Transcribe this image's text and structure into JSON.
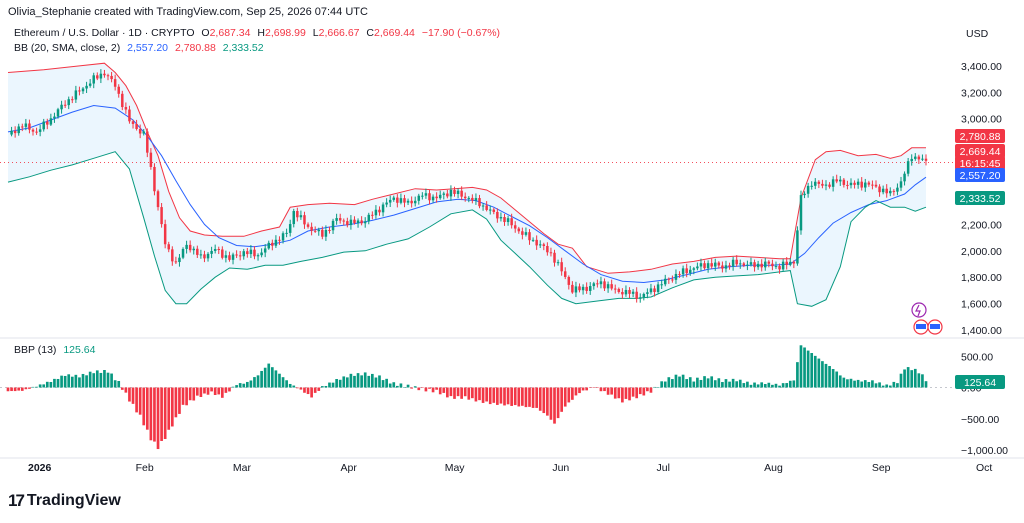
{
  "header": {
    "attribution": "Olivia_Stephanie created with TradingView.com, Sep 25, 2026 07:44 UTC"
  },
  "legend": {
    "symbol": "Ethereum / U.S. Dollar · 1D · CRYPTO",
    "open_label": "O",
    "open": "2,687.34",
    "high_label": "H",
    "high": "2,698.99",
    "low_label": "L",
    "low": "2,666.67",
    "close_label": "C",
    "close": "2,669.44",
    "change": "−17.90 (−0.67%)",
    "bb_label": "BB (20, SMA, close, 2)",
    "bb_basis": "2,557.20",
    "bb_upper": "2,780.88",
    "bb_lower": "2,333.52",
    "bbp_label": "BBP (13)",
    "bbp_value": "125.64"
  },
  "currency": "USD",
  "colors": {
    "up": "#089981",
    "down": "#f23645",
    "upper_band": "#f23645",
    "basis": "#2962ff",
    "lower_band": "#089981",
    "band_fill": "#e3f2fd"
  },
  "badges": {
    "upper": "2,780.88",
    "price": "2,669.44",
    "countdown": "16:15:45",
    "basis": "2,557.20",
    "lower": "2,333.52",
    "bbp": "125.64"
  },
  "brand": {
    "name": "TradingView"
  },
  "chart_data": [
    {
      "type": "candlestick",
      "title": "Ethereum / U.S. Dollar · 1D · CRYPTO",
      "x_ticks": [
        "2026",
        "Feb",
        "Mar",
        "Apr",
        "May",
        "Jun",
        "Jul",
        "Aug",
        "Sep",
        "Oct"
      ],
      "y_ticks": [
        "3,400.00",
        "3,200.00",
        "3,000.00",
        "2,400.00",
        "2,200.00",
        "2,000.00",
        "1,800.00",
        "1,600.00",
        "1,400.00"
      ],
      "ylim": [
        1340,
        3520
      ],
      "close_path": [
        [
          0,
          2880
        ],
        [
          4,
          2950
        ],
        [
          8,
          2900
        ],
        [
          12,
          3000
        ],
        [
          16,
          3120
        ],
        [
          20,
          3210
        ],
        [
          24,
          3300
        ],
        [
          27,
          3350
        ],
        [
          30,
          3250
        ],
        [
          34,
          2980
        ],
        [
          38,
          2880
        ],
        [
          40,
          2620
        ],
        [
          42,
          2330
        ],
        [
          44,
          2050
        ],
        [
          47,
          1900
        ],
        [
          50,
          2050
        ],
        [
          54,
          1950
        ],
        [
          58,
          2010
        ],
        [
          62,
          1940
        ],
        [
          66,
          1990
        ],
        [
          70,
          1970
        ],
        [
          74,
          2060
        ],
        [
          78,
          2130
        ],
        [
          80,
          2300
        ],
        [
          84,
          2180
        ],
        [
          88,
          2120
        ],
        [
          92,
          2240
        ],
        [
          96,
          2210
        ],
        [
          100,
          2230
        ],
        [
          104,
          2320
        ],
        [
          108,
          2400
        ],
        [
          112,
          2360
        ],
        [
          116,
          2420
        ],
        [
          120,
          2400
        ],
        [
          124,
          2450
        ],
        [
          128,
          2410
        ],
        [
          132,
          2360
        ],
        [
          136,
          2280
        ],
        [
          140,
          2220
        ],
        [
          144,
          2130
        ],
        [
          148,
          2060
        ],
        [
          152,
          1980
        ],
        [
          156,
          1800
        ],
        [
          158,
          1700
        ],
        [
          162,
          1720
        ],
        [
          166,
          1760
        ],
        [
          170,
          1700
        ],
        [
          174,
          1680
        ],
        [
          177,
          1650
        ],
        [
          180,
          1700
        ],
        [
          184,
          1770
        ],
        [
          188,
          1830
        ],
        [
          192,
          1870
        ],
        [
          196,
          1900
        ],
        [
          200,
          1880
        ],
        [
          204,
          1910
        ],
        [
          208,
          1890
        ],
        [
          212,
          1900
        ],
        [
          216,
          1880
        ],
        [
          220,
          1920
        ],
        [
          222,
          2400
        ],
        [
          225,
          2520
        ],
        [
          228,
          2490
        ],
        [
          232,
          2530
        ],
        [
          236,
          2500
        ],
        [
          240,
          2510
        ],
        [
          244,
          2470
        ],
        [
          247,
          2430
        ],
        [
          250,
          2520
        ],
        [
          253,
          2720
        ],
        [
          255,
          2700
        ],
        [
          257,
          2669
        ]
      ],
      "bollinger_upper": [
        [
          0,
          3350
        ],
        [
          10,
          3370
        ],
        [
          20,
          3400
        ],
        [
          27,
          3420
        ],
        [
          30,
          3350
        ],
        [
          33,
          3250
        ],
        [
          36,
          3100
        ],
        [
          39,
          2900
        ],
        [
          42,
          2720
        ],
        [
          45,
          2450
        ],
        [
          48,
          2250
        ],
        [
          51,
          2150
        ],
        [
          55,
          2120
        ],
        [
          60,
          2110
        ],
        [
          66,
          2110
        ],
        [
          71,
          2150
        ],
        [
          76,
          2180
        ],
        [
          79,
          2330
        ],
        [
          84,
          2350
        ],
        [
          90,
          2360
        ],
        [
          97,
          2350
        ],
        [
          102,
          2390
        ],
        [
          108,
          2430
        ],
        [
          114,
          2470
        ],
        [
          120,
          2460
        ],
        [
          125,
          2470
        ],
        [
          130,
          2480
        ],
        [
          134,
          2460
        ],
        [
          138,
          2400
        ],
        [
          142,
          2310
        ],
        [
          146,
          2220
        ],
        [
          150,
          2130
        ],
        [
          154,
          2050
        ],
        [
          158,
          2020
        ],
        [
          162,
          1880
        ],
        [
          168,
          1830
        ],
        [
          174,
          1840
        ],
        [
          180,
          1860
        ],
        [
          186,
          1900
        ],
        [
          192,
          1920
        ],
        [
          198,
          1950
        ],
        [
          204,
          1960
        ],
        [
          210,
          1950
        ],
        [
          216,
          1940
        ],
        [
          219,
          1940
        ],
        [
          222,
          2400
        ],
        [
          226,
          2690
        ],
        [
          229,
          2750
        ],
        [
          233,
          2760
        ],
        [
          238,
          2720
        ],
        [
          243,
          2730
        ],
        [
          247,
          2700
        ],
        [
          250,
          2720
        ],
        [
          253,
          2780
        ],
        [
          257,
          2780
        ]
      ],
      "bollinger_basis": [
        [
          0,
          2900
        ],
        [
          6,
          2930
        ],
        [
          12,
          2990
        ],
        [
          18,
          3050
        ],
        [
          24,
          3100
        ],
        [
          30,
          3080
        ],
        [
          35,
          2990
        ],
        [
          39,
          2870
        ],
        [
          43,
          2720
        ],
        [
          47,
          2530
        ],
        [
          51,
          2350
        ],
        [
          55,
          2200
        ],
        [
          59,
          2100
        ],
        [
          64,
          2040
        ],
        [
          69,
          2030
        ],
        [
          74,
          2050
        ],
        [
          79,
          2080
        ],
        [
          84,
          2150
        ],
        [
          90,
          2180
        ],
        [
          96,
          2200
        ],
        [
          102,
          2230
        ],
        [
          108,
          2270
        ],
        [
          114,
          2320
        ],
        [
          120,
          2370
        ],
        [
          126,
          2390
        ],
        [
          131,
          2380
        ],
        [
          136,
          2330
        ],
        [
          141,
          2260
        ],
        [
          146,
          2190
        ],
        [
          151,
          2100
        ],
        [
          156,
          2000
        ],
        [
          161,
          1900
        ],
        [
          166,
          1820
        ],
        [
          172,
          1770
        ],
        [
          178,
          1760
        ],
        [
          184,
          1780
        ],
        [
          190,
          1820
        ],
        [
          196,
          1860
        ],
        [
          202,
          1880
        ],
        [
          208,
          1890
        ],
        [
          214,
          1890
        ],
        [
          219,
          1900
        ],
        [
          223,
          1980
        ],
        [
          227,
          2100
        ],
        [
          231,
          2210
        ],
        [
          236,
          2290
        ],
        [
          241,
          2350
        ],
        [
          246,
          2380
        ],
        [
          251,
          2430
        ],
        [
          254,
          2500
        ],
        [
          257,
          2557
        ]
      ],
      "bollinger_lower": [
        [
          0,
          2520
        ],
        [
          6,
          2560
        ],
        [
          12,
          2610
        ],
        [
          18,
          2650
        ],
        [
          24,
          2700
        ],
        [
          30,
          2750
        ],
        [
          34,
          2620
        ],
        [
          38,
          2250
        ],
        [
          41,
          1960
        ],
        [
          44,
          1700
        ],
        [
          47,
          1600
        ],
        [
          50,
          1600
        ],
        [
          54,
          1710
        ],
        [
          58,
          1800
        ],
        [
          62,
          1870
        ],
        [
          67,
          1860
        ],
        [
          72,
          1890
        ],
        [
          77,
          1890
        ],
        [
          82,
          1920
        ],
        [
          88,
          1950
        ],
        [
          94,
          1990
        ],
        [
          100,
          2000
        ],
        [
          106,
          2050
        ],
        [
          112,
          2090
        ],
        [
          118,
          2180
        ],
        [
          124,
          2280
        ],
        [
          130,
          2310
        ],
        [
          134,
          2240
        ],
        [
          138,
          2080
        ],
        [
          142,
          1980
        ],
        [
          146,
          1880
        ],
        [
          151,
          1740
        ],
        [
          155,
          1640
        ],
        [
          159,
          1600
        ],
        [
          165,
          1620
        ],
        [
          171,
          1640
        ],
        [
          176,
          1640
        ],
        [
          180,
          1650
        ],
        [
          186,
          1720
        ],
        [
          192,
          1780
        ],
        [
          198,
          1800
        ],
        [
          204,
          1810
        ],
        [
          210,
          1820
        ],
        [
          216,
          1840
        ],
        [
          219,
          1850
        ],
        [
          221,
          1600
        ],
        [
          225,
          1580
        ],
        [
          229,
          1630
        ],
        [
          233,
          1880
        ],
        [
          236,
          2220
        ],
        [
          240,
          2330
        ],
        [
          243,
          2380
        ],
        [
          247,
          2330
        ],
        [
          251,
          2330
        ],
        [
          254,
          2300
        ],
        [
          257,
          2330
        ]
      ]
    },
    {
      "type": "bar",
      "title": "BBP (13)",
      "y_ticks": [
        "500.00",
        "0.00",
        "−500.00",
        "−1,000.00"
      ],
      "ylim": [
        -1080,
        680
      ],
      "values": [
        [
          0,
          -60
        ],
        [
          4,
          -50
        ],
        [
          8,
          20
        ],
        [
          12,
          100
        ],
        [
          16,
          200
        ],
        [
          20,
          180
        ],
        [
          24,
          250
        ],
        [
          28,
          260
        ],
        [
          31,
          80
        ],
        [
          34,
          -200
        ],
        [
          37,
          -460
        ],
        [
          40,
          -820
        ],
        [
          42,
          -960
        ],
        [
          44,
          -800
        ],
        [
          46,
          -600
        ],
        [
          49,
          -300
        ],
        [
          53,
          -150
        ],
        [
          57,
          -80
        ],
        [
          60,
          -150
        ],
        [
          64,
          50
        ],
        [
          67,
          80
        ],
        [
          70,
          200
        ],
        [
          73,
          380
        ],
        [
          76,
          220
        ],
        [
          79,
          60
        ],
        [
          82,
          -40
        ],
        [
          85,
          -150
        ],
        [
          88,
          10
        ],
        [
          92,
          120
        ],
        [
          96,
          200
        ],
        [
          100,
          220
        ],
        [
          104,
          170
        ],
        [
          108,
          60
        ],
        [
          112,
          20
        ],
        [
          116,
          -30
        ],
        [
          120,
          -60
        ],
        [
          124,
          -160
        ],
        [
          128,
          -160
        ],
        [
          132,
          -220
        ],
        [
          136,
          -260
        ],
        [
          140,
          -280
        ],
        [
          144,
          -300
        ],
        [
          148,
          -330
        ],
        [
          151,
          -450
        ],
        [
          153,
          -580
        ],
        [
          156,
          -300
        ],
        [
          160,
          -80
        ],
        [
          164,
          10
        ],
        [
          168,
          -100
        ],
        [
          172,
          -220
        ],
        [
          176,
          -150
        ],
        [
          180,
          -60
        ],
        [
          184,
          120
        ],
        [
          188,
          200
        ],
        [
          192,
          120
        ],
        [
          196,
          170
        ],
        [
          200,
          110
        ],
        [
          204,
          120
        ],
        [
          208,
          60
        ],
        [
          212,
          70
        ],
        [
          216,
          40
        ],
        [
          220,
          120
        ],
        [
          222,
          680
        ],
        [
          225,
          550
        ],
        [
          228,
          420
        ],
        [
          231,
          300
        ],
        [
          234,
          150
        ],
        [
          238,
          110
        ],
        [
          242,
          100
        ],
        [
          246,
          30
        ],
        [
          249,
          90
        ],
        [
          251,
          310
        ],
        [
          253,
          300
        ],
        [
          255,
          250
        ],
        [
          257,
          125
        ]
      ]
    }
  ]
}
